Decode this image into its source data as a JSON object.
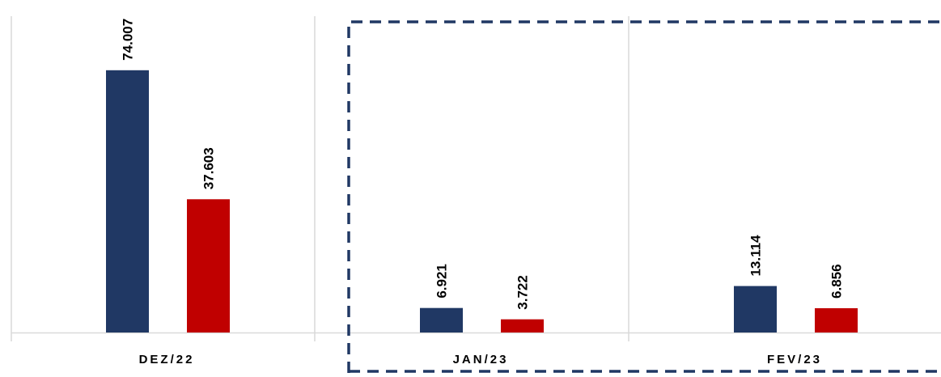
{
  "chart_data": {
    "type": "bar",
    "categories": [
      "DEZ/22",
      "JAN/23",
      "FEV/23"
    ],
    "series": [
      {
        "values": [
          74007,
          6921,
          13114
        ]
      },
      {
        "values": [
          37603,
          3722,
          6856
        ]
      }
    ],
    "value_labels": [
      [
        "74.007",
        "6.921",
        "13.114"
      ],
      [
        "37.603",
        "3.722",
        "6.856"
      ]
    ],
    "ylim": [
      0,
      92000
    ],
    "grid": false,
    "legend": "none",
    "highlight": "dashed box around JAN/23 and FEV/23"
  },
  "colors": {
    "series_0": "#203864",
    "series_1": "#C00000",
    "axis": "#D9D9D9",
    "separator": "#D9D9D9",
    "highlight_box": "#203864",
    "text": "#000000"
  }
}
